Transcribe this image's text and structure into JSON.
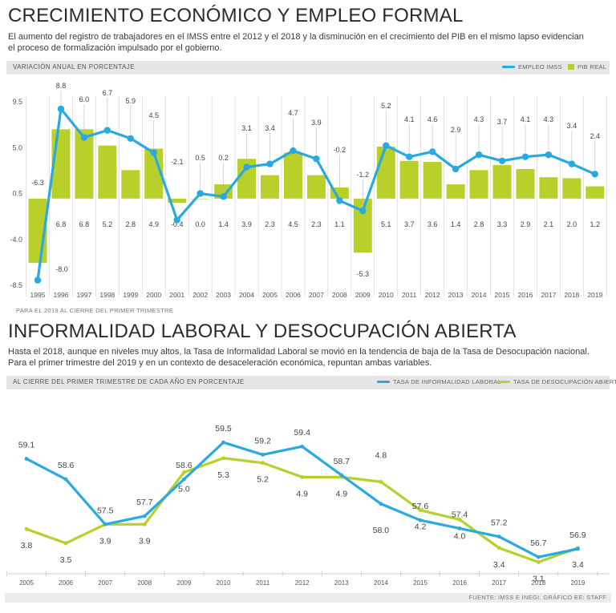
{
  "section1": {
    "title": "CRECIMIENTO ECONÓMICO Y EMPLEO FORMAL",
    "subtitle": "El aumento del registro de trabajadores en el IMSS entre el 2012 y el 2018 y la disminución en el crecimiento del PIB en el mismo lapso evidencian el proceso de formalización impulsado por el gobierno.",
    "band_label": "VARIACIÓN ANUAL EN PORCENTAJE",
    "legend_line": "EMPLEO IMSS",
    "legend_bar": "PIB REAL",
    "note": "PARA EL 2019 AL CIERRE DEL PRIMER TRIMESTRE"
  },
  "section2": {
    "title": "INFORMALIDAD LABORAL Y DESOCUPACIÓN ABIERTA",
    "subtitle": "Hasta el 2018, aunque en niveles muy altos, la Tasa de Informalidad Laboral se movió en la tendencia de baja de la Tasa de Desocupación nacional. Para el primer trimestre del 2019 y en un contexto de desaceleración económica, repuntan ambas variables.",
    "band_label": "AL CIERRE DEL PRIMER TRIMESTRE DE CADA AÑO EN PORCENTAJE",
    "legend_1": "TASA DE INFORMALIDAD LABORAL",
    "legend_2": "TASA DE DESOCUPACIÓN ABIERTA"
  },
  "footer": "FUENTE: IMSS E INEGI. GRÁFICO EE: STAFF",
  "colors": {
    "blue": "#29a9e1",
    "green": "#b9cf2a",
    "grid": "#cfcfcf"
  },
  "chart_data": [
    {
      "type": "bar",
      "title": "CRECIMIENTO ECONÓMICO Y EMPLEO FORMAL",
      "ylabel": "VARIACIÓN ANUAL EN PORCENTAJE",
      "ylim": [
        -8.5,
        9.5
      ],
      "yticks": [
        "9.5",
        "5.0",
        "0.5",
        "-4.0",
        "-8.5"
      ],
      "categories": [
        "1995",
        "1996",
        "1997",
        "1998",
        "1999",
        "2000",
        "2001",
        "2002",
        "2003",
        "2004",
        "2005",
        "2006",
        "2007",
        "2008",
        "2009",
        "2010",
        "2011",
        "2012",
        "2013",
        "2014",
        "2015",
        "2016",
        "2017",
        "2018",
        "2019"
      ],
      "series": [
        {
          "name": "PIB REAL",
          "kind": "bar",
          "values": [
            -6.3,
            6.8,
            6.8,
            5.2,
            2.8,
            4.9,
            -0.4,
            0.0,
            1.4,
            3.9,
            2.3,
            4.5,
            2.3,
            1.1,
            -5.3,
            5.1,
            3.7,
            3.6,
            1.4,
            2.8,
            3.3,
            2.9,
            2.1,
            2.0,
            1.2
          ],
          "labels": [
            "-6.3",
            "6.8",
            "6.8",
            "5.2",
            "2.8",
            "4.9",
            "-0.4",
            "0.0",
            "1.4",
            "3.9",
            "2.3",
            "4.5",
            "2.3",
            "1.1",
            "-5.3",
            "5.1",
            "3.7",
            "3.6",
            "1.4",
            "2.8",
            "3.3",
            "2.9",
            "2.1",
            "2.0",
            "1.2"
          ]
        },
        {
          "name": "EMPLEO IMSS",
          "kind": "line",
          "values": [
            -8.0,
            8.8,
            6.0,
            6.7,
            5.9,
            4.5,
            -2.1,
            0.5,
            0.2,
            3.1,
            3.4,
            4.7,
            3.9,
            -0.2,
            -1.2,
            5.2,
            4.1,
            4.6,
            2.9,
            4.3,
            3.7,
            4.1,
            4.3,
            3.4,
            2.4
          ],
          "labels": [
            "-8.0",
            "8.8",
            "6.0",
            "6.7",
            "5.9",
            "4.5",
            "-2.1",
            "0.5",
            "0.2",
            "3.1",
            "3.4",
            "4.7",
            "3.9",
            "-0.2",
            "-1.2",
            "5.2",
            "4.1",
            "4.6",
            "2.9",
            "4.3",
            "3.7",
            "4.1",
            "4.3",
            "3.4",
            "2.4"
          ]
        }
      ]
    },
    {
      "type": "line",
      "title": "INFORMALIDAD LABORAL Y DESOCUPACIÓN ABIERTA",
      "ylabel": "AL CIERRE DEL PRIMER TRIMESTRE DE CADA AÑO EN PORCENTAJE",
      "categories": [
        "2005",
        "2006",
        "2007",
        "2008",
        "2009",
        "2010",
        "2011",
        "2012",
        "2013",
        "2014",
        "2015",
        "2016",
        "2017",
        "2018",
        "2019"
      ],
      "series": [
        {
          "name": "TASA DE INFORMALIDAD LABORAL",
          "values": [
            59.1,
            58.6,
            57.5,
            57.7,
            58.6,
            59.5,
            59.2,
            59.4,
            58.7,
            58.0,
            57.6,
            57.4,
            57.2,
            56.7,
            56.9
          ],
          "labels": [
            "59.1",
            "58.6",
            "57.5",
            "57.7",
            "58.6",
            "59.5",
            "59.2",
            "59.4",
            "58.7",
            "58.0",
            "57.6",
            "57.4",
            "57.2",
            "56.7",
            "56.9"
          ],
          "ylim": [
            56.0,
            60.5
          ]
        },
        {
          "name": "TASA DE DESOCUPACIÓN ABIERTA",
          "values": [
            3.8,
            3.5,
            3.9,
            3.9,
            5.0,
            5.3,
            5.2,
            4.9,
            4.9,
            4.8,
            4.2,
            4.0,
            3.4,
            3.1,
            3.4
          ],
          "labels": [
            "3.8",
            "3.5",
            "3.9",
            "3.9",
            "5.0",
            "5.3",
            "5.2",
            "4.9",
            "4.9",
            "4.8",
            "4.2",
            "4.0",
            "3.4",
            "3.1",
            "3.4"
          ],
          "ylim": [
            2.6,
            6.5
          ]
        }
      ]
    }
  ]
}
